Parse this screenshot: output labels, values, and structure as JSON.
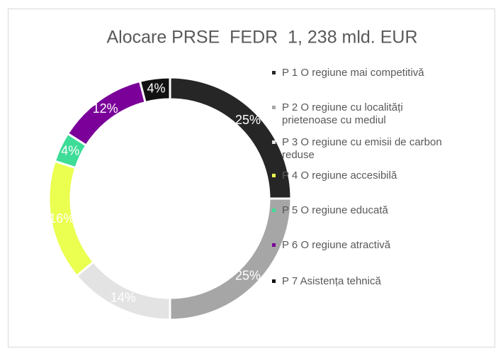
{
  "chart_data": {
    "type": "donut",
    "title": "Alocare PRSE  FEDR  1, 238 mld. EUR",
    "categories": [
      "P 1 O regiune mai competitivă",
      "P 2 O regiune cu localități prietenoase cu mediul",
      "P 3 O regiune cu emisii de carbon reduse",
      "P 4 O regiune accesibilă",
      "P 5 O regiune educată",
      "P 6 O regiune atractivă",
      "P 7 Asistența tehnică"
    ],
    "values": [
      25,
      25,
      14,
      16,
      4,
      12,
      4
    ],
    "value_labels": [
      "25%",
      "25%",
      "14%",
      "16%",
      "4%",
      "12%",
      "4%"
    ],
    "colors": [
      "#262626",
      "#a6a6a6",
      "#e3e3e3",
      "#eaff4f",
      "#3ddc97",
      "#7a0099",
      "#111111"
    ],
    "legend": "right"
  }
}
